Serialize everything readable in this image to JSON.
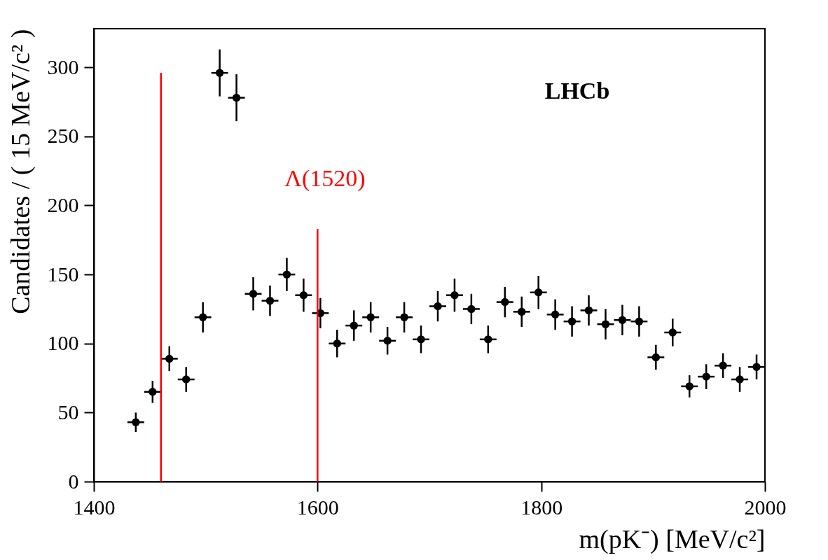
{
  "chart_data": {
    "type": "scatter",
    "xlabel": "m(pK⁻) [MeV/c²]",
    "ylabel": "Candidates / ( 15 MeV/c² )",
    "annotations": [
      "LHCb",
      "Λ(1520)"
    ],
    "xlim": [
      1400,
      2000
    ],
    "xticks": [
      1400,
      1600,
      1800,
      2000
    ],
    "ylim": [
      0,
      328
    ],
    "yticks": [
      0,
      50,
      100,
      150,
      200,
      250,
      300
    ],
    "grid": false,
    "series": [
      {
        "marker": "circle",
        "color": "#000000",
        "x": [
          1437.5,
          1452.5,
          1467.5,
          1482.5,
          1497.5,
          1512.5,
          1527.5,
          1542.5,
          1557.5,
          1572.5,
          1587.5,
          1602.5,
          1617.5,
          1632.5,
          1647.5,
          1662.5,
          1677.5,
          1692.5,
          1707.5,
          1722.5,
          1737.5,
          1752.5,
          1767.5,
          1782.5,
          1797.5,
          1812.5,
          1827.5,
          1842.5,
          1857.5,
          1872.5,
          1887.5,
          1902.5,
          1917.5,
          1932.5,
          1947.5,
          1962.5,
          1977.5,
          1992.5
        ],
        "values": [
          43,
          65,
          89,
          74,
          119,
          296,
          278,
          136,
          131,
          150,
          135,
          122,
          100,
          113,
          119,
          102,
          119,
          103,
          127,
          135,
          125,
          103,
          130,
          123,
          137,
          121,
          116,
          124,
          114,
          117,
          116,
          90,
          108,
          69,
          76,
          84,
          74,
          83
        ],
        "errors": [
          7,
          8,
          9,
          9,
          11,
          17,
          17,
          12,
          11,
          12,
          12,
          11,
          10,
          11,
          11,
          10,
          11,
          10,
          11,
          12,
          11,
          10,
          11,
          11,
          12,
          11,
          11,
          11,
          11,
          11,
          11,
          9,
          10,
          8,
          9,
          9,
          9,
          9
        ],
        "xerrors": [
          7.5,
          7.5,
          7.5,
          7.5,
          7.5,
          7.5,
          7.5,
          7.5,
          7.5,
          7.5,
          7.5,
          7.5,
          7.5,
          7.5,
          7.5,
          7.5,
          7.5,
          7.5,
          7.5,
          7.5,
          7.5,
          7.5,
          7.5,
          7.5,
          7.5,
          7.5,
          7.5,
          7.5,
          7.5,
          7.5,
          7.5,
          7.5,
          7.5,
          7.5,
          7.5,
          7.5,
          7.5,
          7.5
        ]
      },
      {
        "type": "line",
        "color": "#ff0000",
        "x": [
          1460,
          1460
        ],
        "values": [
          0,
          296
        ]
      },
      {
        "type": "line",
        "color": "#ff0000",
        "x": [
          1600,
          1600
        ],
        "values": [
          0,
          183
        ]
      }
    ]
  }
}
